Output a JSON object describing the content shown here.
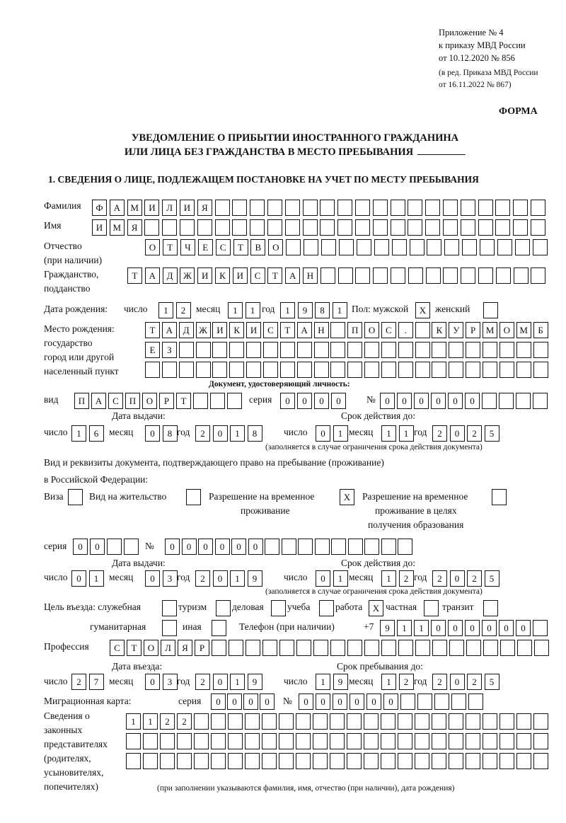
{
  "header": {
    "annex": "Приложение № 4",
    "order": "к приказу МВД России",
    "order_date": "от 10.12.2020 № 856",
    "revision_1": "(в ред. Приказа МВД России",
    "revision_2": "от 16.11.2022 № 867)",
    "form_label": "ФОРМА",
    "title_1": "УВЕДОМЛЕНИЕ О ПРИБЫТИИ ИНОСТРАННОГО ГРАЖДАНИНА",
    "title_2": "ИЛИ ЛИЦА БЕЗ ГРАЖДАНСТВА В МЕСТО ПРЕБЫВАНИЯ",
    "section_1": "1. СВЕДЕНИЯ О ЛИЦЕ, ПОДЛЕЖАЩЕМ ПОСТАНОВКЕ НА УЧЕТ ПО МЕСТУ ПРЕБЫВАНИЯ"
  },
  "labels": {
    "surname": "Фамилия",
    "name": "Имя",
    "patronymic": "Отчество",
    "patronymic_note": "(при наличии)",
    "citizenship_1": "Гражданство,",
    "citizenship_2": "подданство",
    "birth_date": "Дата рождения:",
    "day": "число",
    "month": "месяц",
    "year": "год",
    "sex_male": "Пол: мужской",
    "sex_female": "женский",
    "birthplace_1": "Место рождения:",
    "birthplace_2": "государство",
    "birthplace_3": "город или другой",
    "birthplace_4": "населенный пункт",
    "id_doc_heading": "Документ, удостоверяющий личность:",
    "kind": "вид",
    "series": "серия",
    "number": "№",
    "issue_date": "Дата выдачи:",
    "valid_until": "Срок действия до:",
    "validity_note": "(заполняется в случае ограничения срока действия документа)",
    "right_doc_1": "Вид и реквизиты документа, подтверждающего право на пребывание (проживание)",
    "right_doc_2": "в Российской Федерации:",
    "visa": "Виза",
    "residence_permit": "Вид на жительство",
    "temp_residence_1": "Разрешение на временное",
    "temp_residence_2": "проживание",
    "temp_edu_1": "Разрешение на временное",
    "temp_edu_2": "проживание в целях",
    "temp_edu_3": "получения образования",
    "purpose": "Цель въезда: служебная",
    "tourism": "туризм",
    "business": "деловая",
    "study": "учеба",
    "work": "работа",
    "private": "частная",
    "transit": "транзит",
    "humanitarian": "гуманитарная",
    "other": "иная",
    "phone": "Телефон (при наличии)",
    "phone_prefix": "+7",
    "profession": "Профессия",
    "entry_date": "Дата въезда:",
    "stay_until": "Срок пребывания до:",
    "migration_card": "Миграционная карта:",
    "legal_1": "Сведения о",
    "legal_2": "законных",
    "legal_3": "представителях",
    "legal_4": "(родителях,",
    "legal_5": "усыновителях,",
    "legal_6": "попечителях)",
    "legal_note": "(при заполнении указываются фамилия, имя, отчество (при наличии), дата рождения)"
  },
  "fields": {
    "surname": "ФАМИЛИЯ",
    "name": "ИМЯ",
    "patronymic": "ОТЧЕСТВО",
    "citizenship": "ТАДЖИКИСТАН",
    "birth_day": "12",
    "birth_month": "11",
    "birth_year": "1981",
    "sex_male": "X",
    "sex_female": "",
    "birthplace_1": "ТАДЖИКИСТАН ПОС. КУРМОМБ",
    "birthplace_2": "ЕЗ",
    "birthplace_3": "",
    "id_kind": "ПАСПОРТ",
    "id_series": "0000",
    "id_number": "000000",
    "id_issue_day": "16",
    "id_issue_month": "08",
    "id_issue_year": "2018",
    "id_valid_day": "01",
    "id_valid_month": "11",
    "id_valid_year": "2025",
    "visa": "",
    "residence_permit": "",
    "temp_residence": "X",
    "temp_edu": "",
    "right_series": "00",
    "right_number": "000000",
    "right_issue_day": "01",
    "right_issue_month": "03",
    "right_issue_year": "2019",
    "right_valid_day": "01",
    "right_valid_month": "12",
    "right_valid_year": "2025",
    "purpose_official": "",
    "purpose_tourism": "",
    "purpose_business": "",
    "purpose_study": "",
    "purpose_work": "X",
    "purpose_private": "",
    "purpose_transit": "",
    "purpose_humanitarian": "",
    "purpose_other": "",
    "phone": "911000000",
    "profession": "СТОЛЯР",
    "entry_day": "27",
    "entry_month": "03",
    "entry_year": "2019",
    "stay_day": "19",
    "stay_month": "12",
    "stay_year": "2025",
    "mc_series": "0000",
    "mc_number": "000000",
    "legal_1": "1122",
    "legal_2": "",
    "legal_3": ""
  }
}
